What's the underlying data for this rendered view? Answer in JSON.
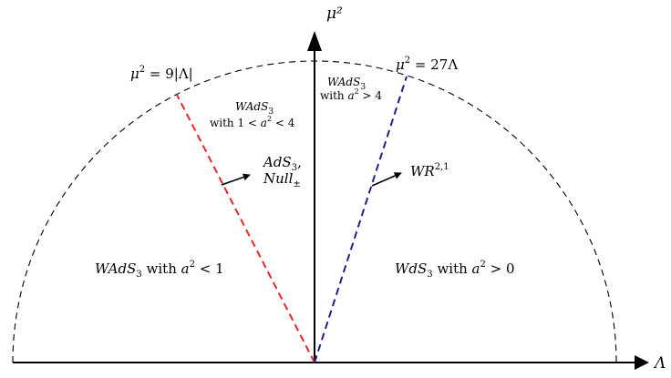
{
  "axes": {
    "x_label": "Λ",
    "y_label": "μ²"
  },
  "boundaries": {
    "arc_label": {
      "lhs": "μ",
      "sup": "2",
      "rhs": " = 9|Λ|"
    },
    "blue_line_label": {
      "lhs": "μ",
      "sup": "2",
      "rhs": " = 27Λ"
    }
  },
  "regions": {
    "left_outer": {
      "name": "WAdS",
      "sub": "3",
      "mid": " with ",
      "var": "a",
      "sup": "2",
      "rhs": " < 1"
    },
    "upper_left": {
      "line1": {
        "name": "WAdS",
        "sub": "3"
      },
      "line2": {
        "pre": "with 1 < ",
        "var": "a",
        "sup": "2",
        "rhs": " < 4"
      }
    },
    "upper_right": {
      "line1": {
        "name": "WAdS",
        "sub": "3"
      },
      "line2": {
        "pre": "with ",
        "var": "a",
        "sup": "2",
        "rhs": " > 4"
      }
    },
    "right_outer": {
      "name": "WdS",
      "sub": "3",
      "mid": " with ",
      "var": "a",
      "sup": "2",
      "rhs": " > 0"
    }
  },
  "line_annotations": {
    "red": {
      "line1": {
        "name": "AdS",
        "sub": "3",
        "tail": ","
      },
      "line2": {
        "name": "Null",
        "sub": "±"
      }
    },
    "blue": {
      "name": "WR",
      "sup": "2,1"
    }
  },
  "colors": {
    "red_line": "#e8262a",
    "blue_line": "#1c1c8c",
    "axis": "#000000",
    "arc": "#000000"
  }
}
